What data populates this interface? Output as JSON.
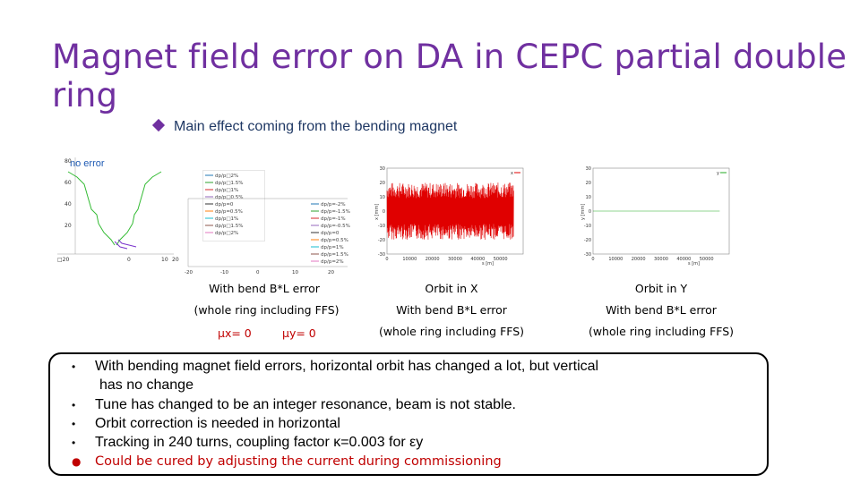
{
  "slide": {
    "title": "Magnet field error on DA in CEPC partial double ring",
    "main_bullet": "Main effect coming from the bending magnet",
    "no_error_label": "no error"
  },
  "colors": {
    "title": "#7030a0",
    "bullet_text": "#1f3864",
    "orbit_x": "#e00000",
    "orbit_y": "#22aa22",
    "emphasis": "#c00000"
  },
  "captions": {
    "da": {
      "line1": "With bend B*L error",
      "line2": "(whole ring including FFS)",
      "mux": "μx= 0",
      "muy": "μy= 0"
    },
    "orbit_x": {
      "line1": "Orbit in X",
      "line2": "With bend B*L error",
      "line3": "(whole ring including FFS)"
    },
    "orbit_y": {
      "line1": "Orbit in Y",
      "line2": "With bend B*L error",
      "line3": "(whole ring including FFS)"
    }
  },
  "bullets": [
    {
      "text": "With bending magnet field errors, horizontal orbit has changed a lot, but vertical",
      "cont": "has no change"
    },
    {
      "text": "Tune has changed to be an integer resonance, beam is not stable."
    },
    {
      "text": "Orbit correction is needed in horizontal"
    },
    {
      "text": "Tracking in 240 turns, coupling factor κ=0.003 for εy"
    },
    {
      "text": "Could be cured by adjusting the current during commissioning"
    }
  ],
  "chart_data": [
    {
      "type": "line",
      "name": "DA no error",
      "xlim": [
        -20,
        20
      ],
      "ylim": [
        -10,
        80
      ],
      "x_ticks": [
        "□20",
        "0",
        "10",
        "20"
      ],
      "y_ticks": [
        "80",
        "60",
        "40",
        "20"
      ],
      "legend": [
        "dp/p□2%",
        "dp/p□1.5%",
        "dp/p□1%",
        "dp/p□0.5%",
        "dp/p=0",
        "dp/p=0.5%",
        "dp/p□1%",
        "dp/p□1.5%",
        "dp/p□2%"
      ]
    },
    {
      "type": "line",
      "name": "DA with error",
      "xlim": [
        -20,
        20
      ],
      "x_ticks": [
        "-20",
        "-10",
        "0",
        "10",
        "20"
      ],
      "legend": [
        "dp/p=-2%",
        "dp/p=-1.5%",
        "dp/p=-1%",
        "dp/p=-0.5%",
        "dp/p=0",
        "dp/p=0.5%",
        "dp/p=1%",
        "dp/p=1.5%",
        "dp/p=2%"
      ]
    },
    {
      "type": "line",
      "name": "x",
      "xlabel": "s [m]",
      "ylabel": "x [mm]",
      "xlim": [
        0,
        60000
      ],
      "ylim": [
        -30,
        30
      ],
      "x_ticks": [
        "0",
        "10000",
        "20000",
        "30000",
        "40000",
        "50000"
      ],
      "y_ticks": [
        "30",
        "20",
        "10",
        "0",
        "-10",
        "-20",
        "-30"
      ],
      "amplitude": 20
    },
    {
      "type": "line",
      "name": "y",
      "xlabel": "s [m]",
      "ylabel": "y [mm]",
      "xlim": [
        0,
        60000
      ],
      "ylim": [
        -30,
        30
      ],
      "x_ticks": [
        "0",
        "10000",
        "20000",
        "30000",
        "40000",
        "50000"
      ],
      "y_ticks": [
        "30",
        "20",
        "10",
        "0",
        "-10",
        "-20",
        "-30"
      ],
      "amplitude": 0
    }
  ]
}
